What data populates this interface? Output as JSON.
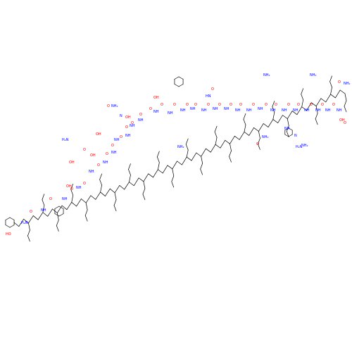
{
  "diagram": {
    "type": "skeletal chemical structure",
    "description_visible": false,
    "colors": {
      "bond": "#000000",
      "oxygen": "#ff0000",
      "nitrogen": "#0000ff",
      "background": "#ffffff"
    },
    "atom_labels": [
      {
        "id": "ho-tyr",
        "text": "HO",
        "color": "oxygen"
      },
      {
        "id": "h2n-tyr",
        "text": "H₂N",
        "color": "nitrogen"
      },
      {
        "id": "o-1",
        "text": "O",
        "color": "oxygen"
      },
      {
        "id": "nh-1",
        "text": "NH",
        "color": "nitrogen"
      },
      {
        "id": "o-2",
        "text": "O",
        "color": "oxygen"
      },
      {
        "id": "nh-2",
        "text": "NH",
        "color": "nitrogen"
      },
      {
        "id": "o-3",
        "text": "O",
        "color": "oxygen"
      },
      {
        "id": "nh-3",
        "text": "NH",
        "color": "nitrogen"
      },
      {
        "id": "o-4",
        "text": "O",
        "color": "oxygen"
      },
      {
        "id": "nh-4",
        "text": "NH",
        "color": "nitrogen"
      },
      {
        "id": "oh-thr",
        "text": "OH",
        "color": "oxygen"
      },
      {
        "id": "o-5",
        "text": "O",
        "color": "oxygen"
      },
      {
        "id": "nh-5",
        "text": "NH",
        "color": "nitrogen"
      },
      {
        "id": "oh-ser",
        "text": "OH",
        "color": "oxygen"
      },
      {
        "id": "o-6",
        "text": "O",
        "color": "oxygen"
      },
      {
        "id": "nh-6",
        "text": "NH",
        "color": "nitrogen"
      },
      {
        "id": "oh-glu",
        "text": "OH",
        "color": "oxygen"
      },
      {
        "id": "o-glu",
        "text": "O",
        "color": "oxygen"
      },
      {
        "id": "o-7",
        "text": "O",
        "color": "oxygen"
      },
      {
        "id": "nh-7",
        "text": "NH",
        "color": "nitrogen"
      },
      {
        "id": "h2n-lys1",
        "text": "H₂N",
        "color": "nitrogen"
      },
      {
        "id": "o-8",
        "text": "O",
        "color": "oxygen"
      },
      {
        "id": "nh-8",
        "text": "NH",
        "color": "nitrogen"
      },
      {
        "id": "oh-ser2",
        "text": "OH",
        "color": "oxygen"
      },
      {
        "id": "o-9",
        "text": "O",
        "color": "oxygen"
      },
      {
        "id": "nh-9",
        "text": "NH",
        "color": "nitrogen"
      },
      {
        "id": "o-gln",
        "text": "O",
        "color": "oxygen"
      },
      {
        "id": "nh2-gln",
        "text": "NH₂",
        "color": "nitrogen"
      },
      {
        "id": "o-10",
        "text": "O",
        "color": "oxygen"
      },
      {
        "id": "nh-10",
        "text": "NH",
        "color": "nitrogen"
      },
      {
        "id": "oh-thr2",
        "text": "OH",
        "color": "oxygen"
      },
      {
        "id": "o-11",
        "text": "O",
        "color": "oxygen"
      },
      {
        "id": "n-pro",
        "text": "N",
        "color": "nitrogen"
      },
      {
        "id": "o-12",
        "text": "O",
        "color": "oxygen"
      },
      {
        "id": "nh-12",
        "text": "NH",
        "color": "nitrogen"
      },
      {
        "id": "o-13",
        "text": "O",
        "color": "oxygen"
      },
      {
        "id": "nh-13",
        "text": "NH",
        "color": "nitrogen"
      },
      {
        "id": "oh-thr3",
        "text": "OH",
        "color": "oxygen"
      },
      {
        "id": "o-14",
        "text": "O",
        "color": "oxygen"
      },
      {
        "id": "nh-14",
        "text": "NH",
        "color": "nitrogen"
      },
      {
        "id": "o-15",
        "text": "O",
        "color": "oxygen"
      },
      {
        "id": "nh-15",
        "text": "NH",
        "color": "nitrogen"
      },
      {
        "id": "o-16",
        "text": "O",
        "color": "oxygen"
      },
      {
        "id": "nh-16",
        "text": "NH",
        "color": "nitrogen"
      },
      {
        "id": "nh2-lys2",
        "text": "NH₂",
        "color": "nitrogen"
      },
      {
        "id": "o-17",
        "text": "O",
        "color": "oxygen"
      },
      {
        "id": "nh-17",
        "text": "NH",
        "color": "nitrogen"
      },
      {
        "id": "o-asp",
        "text": "O",
        "color": "oxygen"
      },
      {
        "id": "nh-asp",
        "text": "HN",
        "color": "nitrogen"
      },
      {
        "id": "o-18",
        "text": "O",
        "color": "oxygen"
      },
      {
        "id": "nh-18",
        "text": "NH",
        "color": "nitrogen"
      },
      {
        "id": "o-19",
        "text": "O",
        "color": "oxygen"
      },
      {
        "id": "nh-19",
        "text": "NH",
        "color": "nitrogen"
      },
      {
        "id": "o-20",
        "text": "O",
        "color": "oxygen"
      },
      {
        "id": "nh-20",
        "text": "NH",
        "color": "nitrogen"
      },
      {
        "id": "o-21",
        "text": "O",
        "color": "oxygen"
      },
      {
        "id": "nh-21",
        "text": "NH",
        "color": "nitrogen"
      },
      {
        "id": "nh2-lys3",
        "text": "NH₂",
        "color": "nitrogen"
      },
      {
        "id": "o-22",
        "text": "O",
        "color": "oxygen"
      },
      {
        "id": "nh-22",
        "text": "NH",
        "color": "nitrogen"
      },
      {
        "id": "nh2-asn",
        "text": "NH₂",
        "color": "nitrogen"
      },
      {
        "id": "o-asn",
        "text": "O",
        "color": "oxygen"
      },
      {
        "id": "o-23",
        "text": "O",
        "color": "oxygen"
      },
      {
        "id": "nh-23",
        "text": "NH",
        "color": "nitrogen"
      },
      {
        "id": "o-24",
        "text": "O",
        "color": "oxygen"
      },
      {
        "id": "nh-24",
        "text": "NH",
        "color": "nitrogen"
      },
      {
        "id": "nh-his",
        "text": "NH",
        "color": "nitrogen"
      },
      {
        "id": "n-his",
        "text": "N",
        "color": "nitrogen"
      },
      {
        "id": "o-25",
        "text": "O",
        "color": "oxygen"
      },
      {
        "id": "nh-25",
        "text": "NH",
        "color": "nitrogen"
      },
      {
        "id": "nh2-lys4",
        "text": "NH₂",
        "color": "nitrogen"
      },
      {
        "id": "o-26",
        "text": "O",
        "color": "oxygen"
      },
      {
        "id": "nh-26",
        "text": "NH",
        "color": "nitrogen"
      },
      {
        "id": "nh2-lys5",
        "text": "NH₂",
        "color": "nitrogen"
      },
      {
        "id": "h2n-lys6",
        "text": "H₂N",
        "color": "nitrogen"
      },
      {
        "id": "o-27",
        "text": "O",
        "color": "oxygen"
      },
      {
        "id": "nh-27",
        "text": "NH",
        "color": "nitrogen"
      },
      {
        "id": "o-28",
        "text": "O",
        "color": "oxygen"
      },
      {
        "id": "nh-28",
        "text": "NH",
        "color": "nitrogen"
      },
      {
        "id": "oh-cterm",
        "text": "OH",
        "color": "oxygen"
      },
      {
        "id": "o-cterm",
        "text": "O",
        "color": "oxygen"
      },
      {
        "id": "o-gln2",
        "text": "O",
        "color": "oxygen"
      },
      {
        "id": "nh2-gln2",
        "text": "NH₂",
        "color": "nitrogen"
      }
    ]
  }
}
